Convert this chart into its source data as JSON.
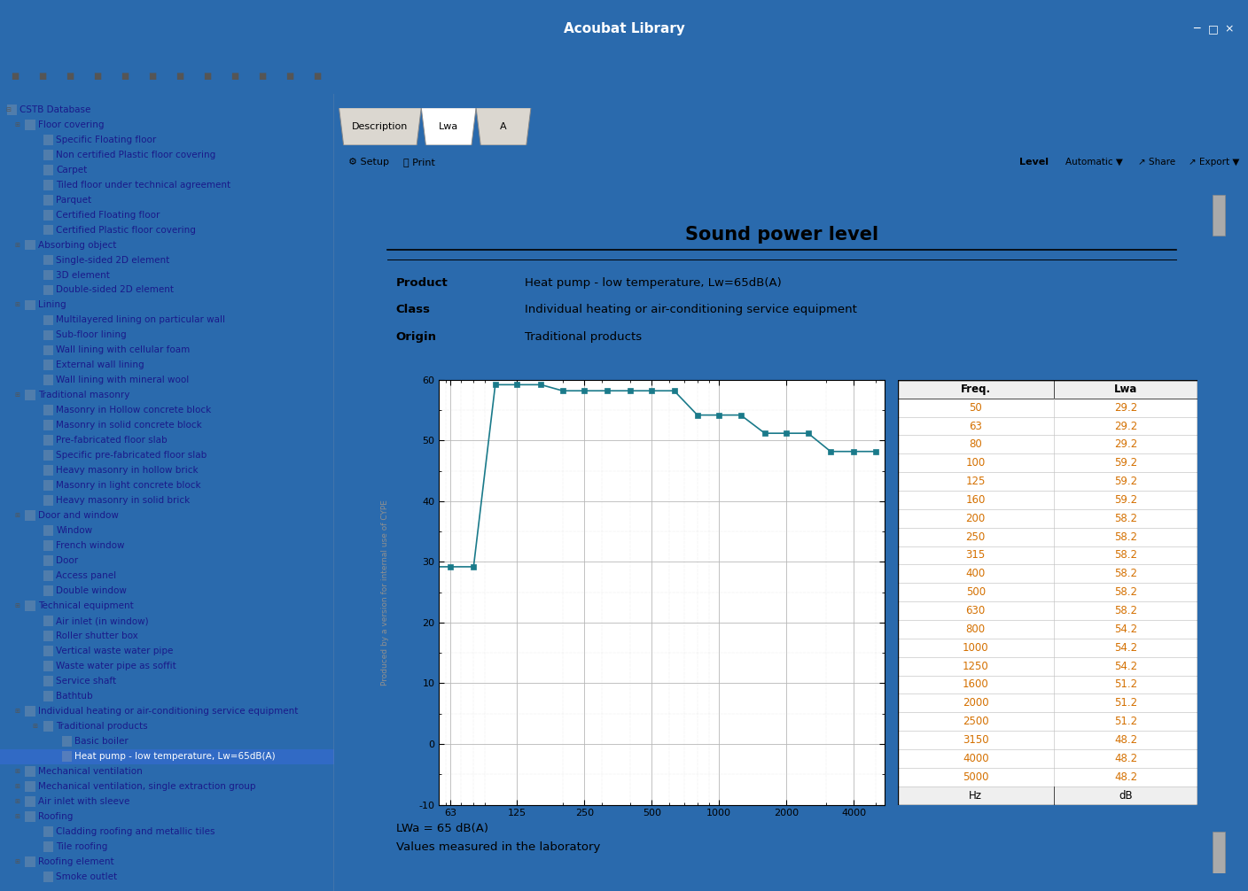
{
  "title": "Sound power level",
  "app_title": "Acoubat Library",
  "product_label": "Product",
  "class_label": "Class",
  "origin_label": "Origin",
  "product_value": "Heat pump - low temperature, Lw=65dB(A)",
  "class_value": "Individual heating or air-conditioning service equipment",
  "origin_value": "Traditional products",
  "lwa_note": "LWa = 65 dB(A)",
  "measured_note": "Values measured in the laboratory",
  "watermark": "Produced by a version for internal use of CYPE",
  "freq_values": [
    50,
    63,
    80,
    100,
    125,
    160,
    200,
    250,
    315,
    400,
    500,
    630,
    800,
    1000,
    1250,
    1600,
    2000,
    2500,
    3150,
    4000,
    5000
  ],
  "lwa_values": [
    29.2,
    29.2,
    29.2,
    59.2,
    59.2,
    59.2,
    58.2,
    58.2,
    58.2,
    58.2,
    58.2,
    58.2,
    54.2,
    54.2,
    54.2,
    51.2,
    51.2,
    51.2,
    48.2,
    48.2,
    48.2
  ],
  "table_header": [
    "Freq.",
    "Lwa"
  ],
  "table_footer": [
    "Hz",
    "dB"
  ],
  "ylim": [
    -10,
    60
  ],
  "yticks": [
    -10,
    0,
    10,
    20,
    30,
    40,
    50,
    60
  ],
  "xlog_ticks": [
    63,
    125,
    250,
    500,
    1000,
    2000,
    4000
  ],
  "line_color": "#1a7a8a",
  "marker_color": "#1a7a8a",
  "grid_major_color": "#b8b8b8",
  "grid_minor_color": "#d8d8d8",
  "table_header_bg": "#efefef",
  "table_text_color": "#d47000",
  "title_bar_color": "#2a6aad",
  "toolbar_bg": "#e8e4de",
  "left_panel_bg": "#ffffff",
  "right_panel_bg": "#dbd7d0",
  "page_bg": "#ffffff",
  "tab_active_bg": "#ffffff",
  "tab_inactive_bg": "#dbd7d0",
  "tree_text_color": "#1a1a8a",
  "tree_items": [
    [
      "CSTB Database",
      0,
      false
    ],
    [
      "Floor covering",
      1,
      false
    ],
    [
      "Specific Floating floor",
      2,
      true
    ],
    [
      "Non certified Plastic floor covering",
      2,
      true
    ],
    [
      "Carpet",
      2,
      true
    ],
    [
      "Tiled floor under technical agreement",
      2,
      true
    ],
    [
      "Parquet",
      2,
      true
    ],
    [
      "Certified Floating floor",
      2,
      true
    ],
    [
      "Certified Plastic floor covering",
      2,
      true
    ],
    [
      "Absorbing object",
      1,
      false
    ],
    [
      "Single-sided 2D element",
      2,
      true
    ],
    [
      "3D element",
      2,
      true
    ],
    [
      "Double-sided 2D element",
      2,
      true
    ],
    [
      "Lining",
      1,
      false
    ],
    [
      "Multilayered lining on particular wall",
      2,
      true
    ],
    [
      "Sub-floor lining",
      2,
      true
    ],
    [
      "Wall lining with cellular foam",
      2,
      true
    ],
    [
      "External wall lining",
      2,
      true
    ],
    [
      "Wall lining with mineral wool",
      2,
      true
    ],
    [
      "Traditional masonry",
      1,
      false
    ],
    [
      "Masonry in Hollow concrete block",
      2,
      true
    ],
    [
      "Masonry in solid concrete block",
      2,
      true
    ],
    [
      "Pre-fabricated floor slab",
      2,
      true
    ],
    [
      "Specific pre-fabricated floor slab",
      2,
      true
    ],
    [
      "Heavy masonry in hollow brick",
      2,
      true
    ],
    [
      "Masonry in light concrete block",
      2,
      true
    ],
    [
      "Heavy masonry in solid brick",
      2,
      true
    ],
    [
      "Door and window",
      1,
      false
    ],
    [
      "Window",
      2,
      true
    ],
    [
      "French window",
      2,
      true
    ],
    [
      "Door",
      2,
      true
    ],
    [
      "Access panel",
      2,
      true
    ],
    [
      "Double window",
      2,
      true
    ],
    [
      "Technical equipment",
      1,
      false
    ],
    [
      "Air inlet (in window)",
      2,
      true
    ],
    [
      "Roller shutter box",
      2,
      true
    ],
    [
      "Vertical waste water pipe",
      2,
      true
    ],
    [
      "Waste water pipe as soffit",
      2,
      true
    ],
    [
      "Service shaft",
      2,
      true
    ],
    [
      "Bathtub",
      2,
      true
    ],
    [
      "Individual heating or air-conditioning service equipment",
      1,
      false
    ],
    [
      "Traditional products",
      2,
      false
    ],
    [
      "Basic boiler",
      3,
      true
    ],
    [
      "Heat pump - low temperature, Lw=65dB(A)",
      3,
      true
    ],
    [
      "Mechanical ventilation",
      1,
      false
    ],
    [
      "Mechanical ventilation, single extraction group",
      1,
      false
    ],
    [
      "Air inlet with sleeve",
      1,
      false
    ],
    [
      "Roofing",
      1,
      false
    ],
    [
      "Cladding roofing and metallic tiles",
      2,
      true
    ],
    [
      "Tile roofing",
      2,
      true
    ],
    [
      "Roofing element",
      1,
      false
    ],
    [
      "Smoke outlet",
      2,
      true
    ]
  ],
  "title_fontsize": 15,
  "info_fontsize": 9.5,
  "axis_fontsize": 8,
  "table_fontsize": 8.5,
  "watermark_fontsize": 6.5,
  "tree_fontsize": 7.5,
  "app_title_fontsize": 11
}
